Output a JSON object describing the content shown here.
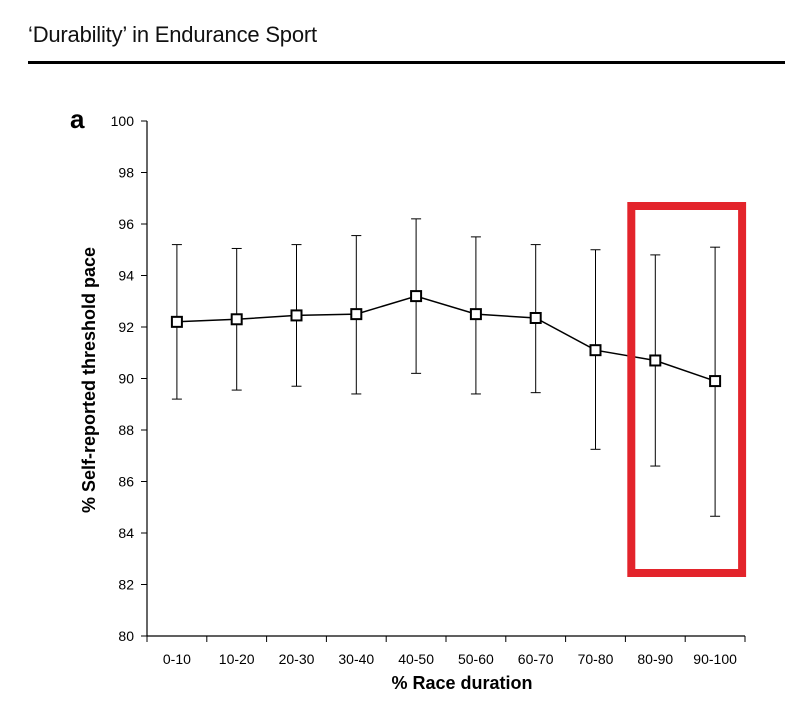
{
  "header": {
    "title": "‘Durability’ in Endurance Sport"
  },
  "chart_data": {
    "type": "line",
    "panel_label": "a",
    "xlabel": "% Race duration",
    "ylabel": "% Self-reported threshold pace",
    "categories": [
      "0-10",
      "10-20",
      "20-30",
      "30-40",
      "40-50",
      "50-60",
      "60-70",
      "70-80",
      "80-90",
      "90-100"
    ],
    "values": [
      92.2,
      92.3,
      92.45,
      92.5,
      93.2,
      92.5,
      92.35,
      91.1,
      90.7,
      89.9
    ],
    "error_upper": [
      95.2,
      95.05,
      95.2,
      95.55,
      96.2,
      95.5,
      95.2,
      95.0,
      94.8,
      95.1
    ],
    "error_lower": [
      89.2,
      89.55,
      89.7,
      89.4,
      90.2,
      89.4,
      89.45,
      87.25,
      86.6,
      84.65
    ],
    "ylim": [
      80,
      100
    ],
    "yticks": [
      80,
      82,
      84,
      86,
      88,
      90,
      92,
      94,
      96,
      98,
      100
    ],
    "grid": false,
    "highlight": {
      "categories": [
        "80-90",
        "90-100"
      ],
      "color": "#e3242b"
    },
    "colors": {
      "line": "#000000",
      "marker_fill": "#ffffff",
      "marker_stroke": "#000000"
    }
  }
}
